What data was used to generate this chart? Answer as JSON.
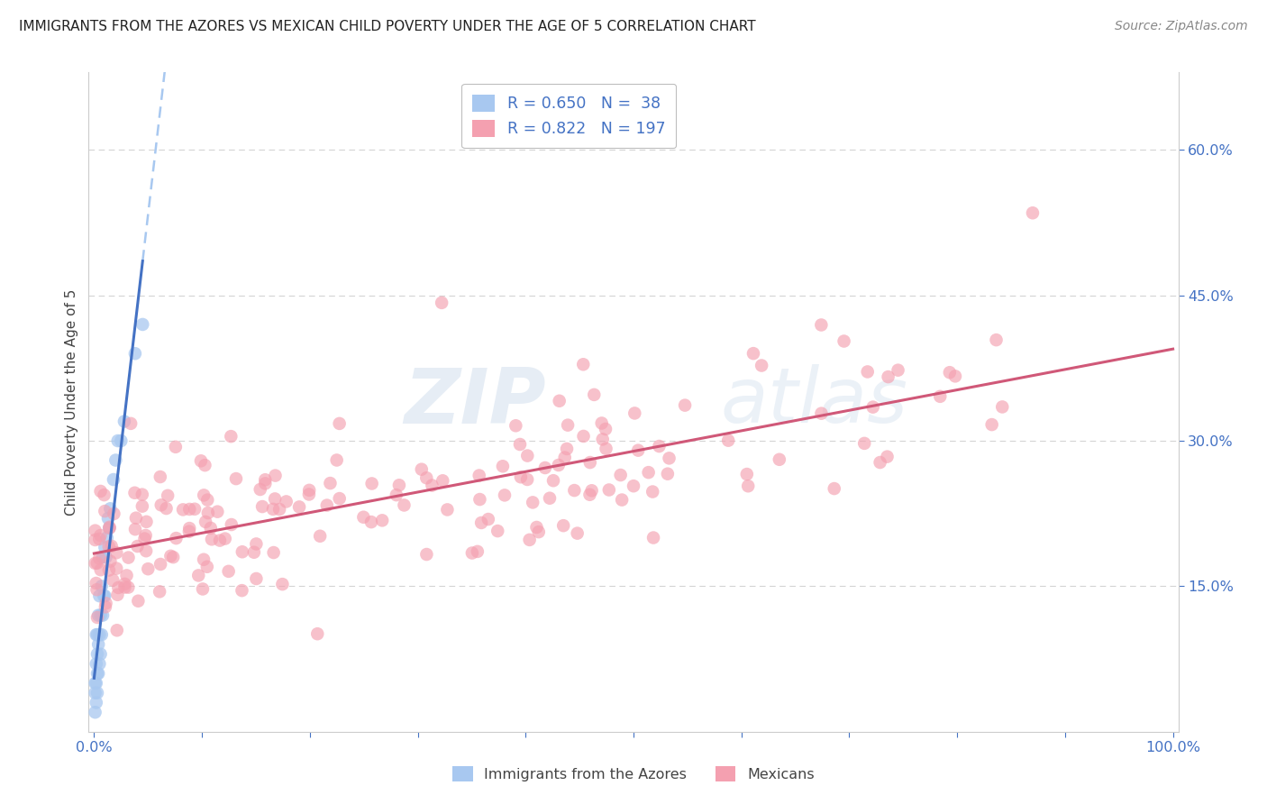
{
  "title": "IMMIGRANTS FROM THE AZORES VS MEXICAN CHILD POVERTY UNDER THE AGE OF 5 CORRELATION CHART",
  "source": "Source: ZipAtlas.com",
  "ylabel": "Child Poverty Under the Age of 5",
  "legend_labels": [
    "Immigrants from the Azores",
    "Mexicans"
  ],
  "R_azores": 0.65,
  "N_azores": 38,
  "R_mexicans": 0.822,
  "N_mexicans": 197,
  "color_azores": "#a8c8f0",
  "color_mexicans": "#f4a0b0",
  "line_color_azores": "#4472c4",
  "line_color_mexicans": "#d05878",
  "background_color": "#ffffff",
  "grid_color": "#d0d0d0",
  "title_color": "#222222",
  "axis_label_color": "#444444",
  "annotation_color": "#4472c4",
  "watermark_zip": "ZIP",
  "watermark_atlas": "atlas",
  "xlim": [
    0.0,
    1.0
  ],
  "ylim": [
    0.0,
    0.68
  ],
  "yticks": [
    0.15,
    0.3,
    0.45,
    0.6
  ],
  "xticks": [
    0.0,
    0.1,
    0.2,
    0.3,
    0.4,
    0.5,
    0.6,
    0.7,
    0.8,
    0.9,
    1.0
  ]
}
